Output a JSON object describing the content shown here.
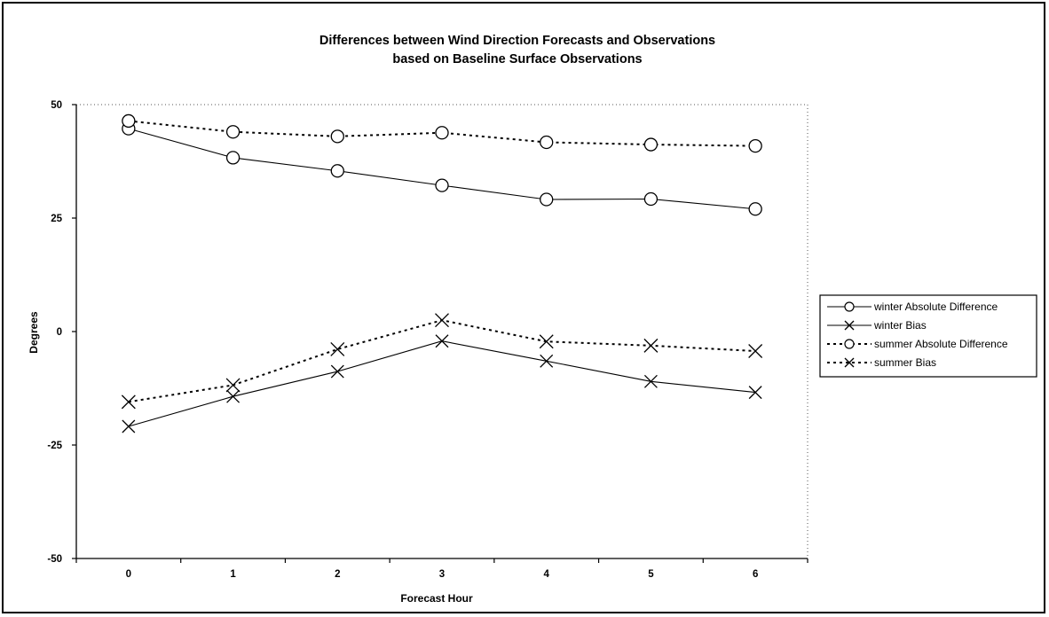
{
  "chart_data": {
    "type": "line",
    "title": "Differences between Wind Direction Forecasts and Observations",
    "subtitle": "based on Baseline Surface Observations",
    "xlabel": "Forecast Hour",
    "ylabel": "Degrees",
    "categories": [
      "0",
      "1",
      "2",
      "3",
      "4",
      "5",
      "6"
    ],
    "ylim": [
      -50,
      50
    ],
    "yticks": [
      "50",
      "25",
      "0",
      "-25",
      "-50"
    ],
    "yticks_values": [
      50,
      25,
      0,
      -25,
      -50
    ],
    "grid": false,
    "legend_position": "right",
    "series": [
      {
        "name": "winter Absolute Difference",
        "values": [
          44.7,
          38.3,
          35.4,
          32.2,
          29.1,
          29.2,
          27.0
        ],
        "marker": "circle",
        "line": "solid"
      },
      {
        "name": "winter Bias",
        "values": [
          -20.9,
          -14.3,
          -8.8,
          -2.1,
          -6.5,
          -11.0,
          -13.4
        ],
        "marker": "x",
        "line": "solid"
      },
      {
        "name": "summer Absolute Difference",
        "values": [
          46.4,
          44.0,
          43.0,
          43.8,
          41.7,
          41.2,
          40.9
        ],
        "marker": "circle",
        "line": "dotted"
      },
      {
        "name": "summer Bias",
        "values": [
          -15.5,
          -11.8,
          -3.9,
          2.5,
          -2.2,
          -3.1,
          -4.3
        ],
        "marker": "x",
        "line": "dotted"
      }
    ]
  }
}
